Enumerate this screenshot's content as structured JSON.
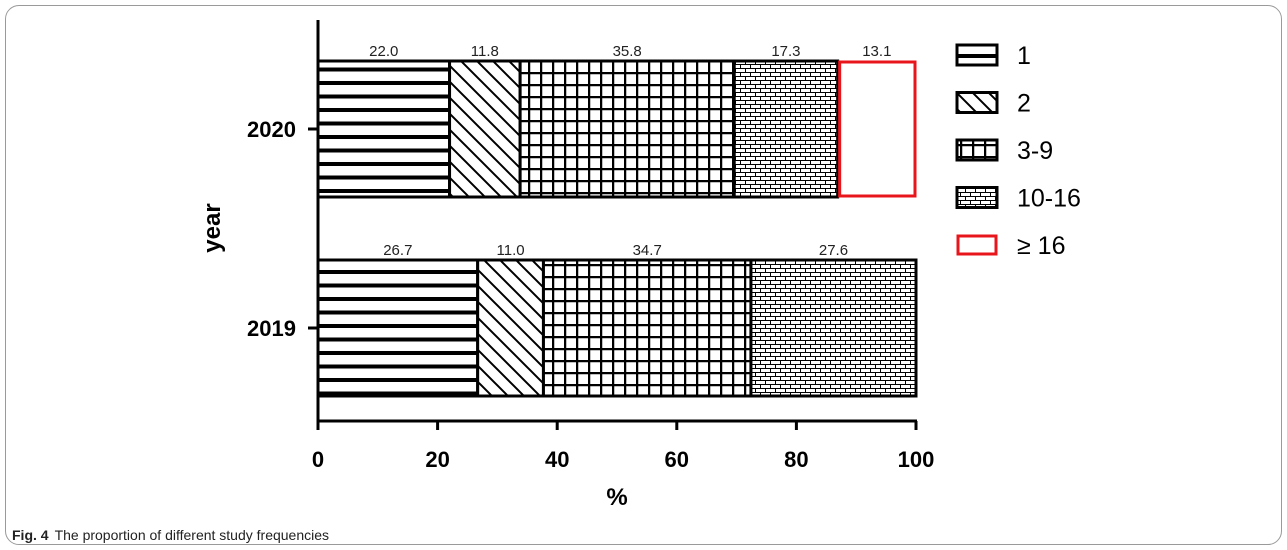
{
  "caption": {
    "label": "Fig. 4",
    "text": "The proportion of different study frequencies"
  },
  "chart_data": {
    "type": "bar",
    "orientation": "horizontal",
    "stacked": true,
    "categories": [
      "2020",
      "2019"
    ],
    "xlabel": "%",
    "ylabel": "year",
    "xlim": [
      0,
      100
    ],
    "x_ticks": [
      "0",
      "20",
      "40",
      "60",
      "80",
      "100"
    ],
    "legend_position": "right",
    "series": [
      {
        "name": "1",
        "pattern": "horizontal-lines",
        "values": [
          22.0,
          26.7
        ],
        "labels": [
          "22.0",
          "26.7"
        ]
      },
      {
        "name": "2",
        "pattern": "diagonal-lines",
        "values": [
          11.8,
          11.0
        ],
        "labels": [
          "11.8",
          "11.0"
        ]
      },
      {
        "name": "3-9",
        "pattern": "grid",
        "values": [
          35.8,
          34.7
        ],
        "labels": [
          "35.8",
          "34.7"
        ]
      },
      {
        "name": "10-16",
        "pattern": "brick",
        "values": [
          17.3,
          27.6
        ],
        "labels": [
          "17.3",
          "27.6"
        ]
      },
      {
        "name": "≥ 16",
        "pattern": "red-outline",
        "color": "#e8161b",
        "values": [
          13.1,
          0
        ],
        "labels": [
          "13.1",
          ""
        ]
      }
    ]
  }
}
